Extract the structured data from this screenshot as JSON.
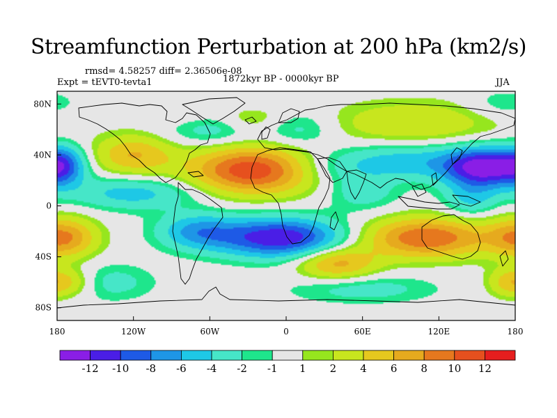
{
  "title": "Streamfunction Perturbation at 200 hPa (km2/s)",
  "stats_text": "rmsd= 4.58257  diff= 2.36506e-08",
  "expt_text": "Expt = tEVT0-tevta1",
  "period_text": "1872kyr BP - 0000kyr BP",
  "season_text": "JJA",
  "colors": {
    "background_land_ocean": "#e6e6e6",
    "coastline": "#000000"
  },
  "chart_data": {
    "type": "heatmap",
    "projection": "cylindrical equidistant",
    "field": "200 hPa streamfunction perturbation",
    "units": "km2/s",
    "x_range": [
      -180,
      180
    ],
    "y_range": [
      -90,
      90
    ],
    "lon_ticks": [
      {
        "value": -180,
        "label": "180"
      },
      {
        "value": -120,
        "label": "120W"
      },
      {
        "value": -60,
        "label": "60W"
      },
      {
        "value": 0,
        "label": "0"
      },
      {
        "value": 60,
        "label": "60E"
      },
      {
        "value": 120,
        "label": "120E"
      },
      {
        "value": 180,
        "label": "180"
      }
    ],
    "lat_ticks": [
      {
        "value": 80,
        "label": "80N"
      },
      {
        "value": 40,
        "label": "40N"
      },
      {
        "value": 0,
        "label": "0"
      },
      {
        "value": -40,
        "label": "40S"
      },
      {
        "value": -80,
        "label": "80S"
      }
    ],
    "colorbar": {
      "colors": [
        "#8a1ee6",
        "#4a1ee6",
        "#1e5ae6",
        "#1e96e6",
        "#1ec8e6",
        "#46e6c8",
        "#1ee68c",
        "#e6e6e6",
        "#96e61e",
        "#c8e61e",
        "#e6c81e",
        "#e6aa1e",
        "#e6781e",
        "#e6501e",
        "#e61e1e"
      ],
      "boundaries": [
        -12,
        -10,
        -8,
        -6,
        -4,
        -2,
        -1,
        1,
        2,
        4,
        6,
        8,
        10,
        12
      ],
      "labels": [
        "-12",
        "-10",
        "-8",
        "-6",
        "-4",
        "-2",
        "-1",
        "1",
        "2",
        "4",
        "6",
        "8",
        "10",
        "12"
      ]
    },
    "centers": [
      {
        "lon": -25,
        "lat": 28,
        "value": 12,
        "sx": 35,
        "sy": 13
      },
      {
        "lon": 110,
        "lat": -25,
        "value": 10,
        "sx": 35,
        "sy": 11
      },
      {
        "lon": -175,
        "lat": -25,
        "value": 8,
        "sx": 18,
        "sy": 11
      },
      {
        "lon": 40,
        "lat": -45,
        "value": 7,
        "sx": 22,
        "sy": 9
      },
      {
        "lon": 100,
        "lat": 65,
        "value": 4,
        "sx": 45,
        "sy": 12
      },
      {
        "lon": -120,
        "lat": 40,
        "value": 6,
        "sx": 22,
        "sy": 11
      },
      {
        "lon": -170,
        "lat": -60,
        "value": 4,
        "sx": 15,
        "sy": 8
      },
      {
        "lon": 175,
        "lat": -60,
        "value": 4,
        "sx": 12,
        "sy": 8
      },
      {
        "lon": -75,
        "lat": 70,
        "value": 2,
        "sx": 18,
        "sy": 8
      },
      {
        "lon": -30,
        "lat": 68,
        "value": 3,
        "sx": 20,
        "sy": 7
      },
      {
        "lon": 155,
        "lat": 30,
        "value": -13,
        "sx": 22,
        "sy": 11
      },
      {
        "lon": 95,
        "lat": 35,
        "value": -5,
        "sx": 35,
        "sy": 10
      },
      {
        "lon": -5,
        "lat": -25,
        "value": -12,
        "sx": 35,
        "sy": 11
      },
      {
        "lon": -70,
        "lat": -20,
        "value": -6,
        "sx": 22,
        "sy": 10
      },
      {
        "lon": -120,
        "lat": 10,
        "value": -5,
        "sx": 35,
        "sy": 9
      },
      {
        "lon": -175,
        "lat": 32,
        "value": -7,
        "sx": 12,
        "sy": 11
      },
      {
        "lon": 30,
        "lat": 30,
        "value": -3,
        "sx": 30,
        "sy": 10
      },
      {
        "lon": 60,
        "lat": 10,
        "value": -3,
        "sx": 20,
        "sy": 10
      },
      {
        "lon": -60,
        "lat": 62,
        "value": -4,
        "sx": 25,
        "sy": 10
      },
      {
        "lon": 10,
        "lat": 60,
        "value": -3,
        "sx": 20,
        "sy": 10
      },
      {
        "lon": -140,
        "lat": -60,
        "value": -3,
        "sx": 25,
        "sy": 10
      },
      {
        "lon": 60,
        "lat": -65,
        "value": -3,
        "sx": 40,
        "sy": 8
      },
      {
        "lon": 170,
        "lat": 80,
        "value": -2,
        "sx": 20,
        "sy": 8
      },
      {
        "lon": 145,
        "lat": 5,
        "value": -4,
        "sx": 15,
        "sy": 10
      }
    ]
  }
}
